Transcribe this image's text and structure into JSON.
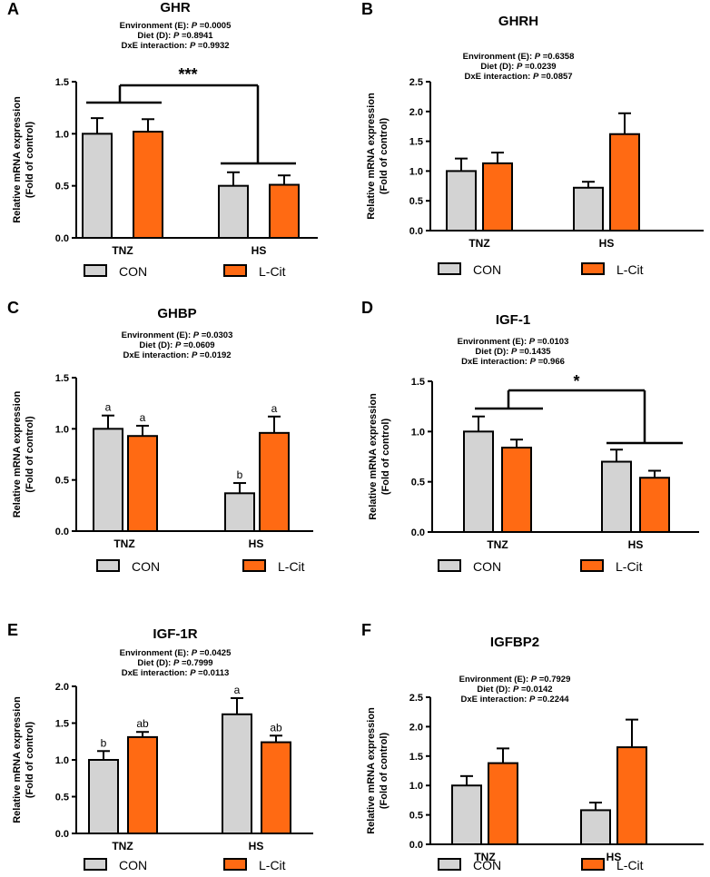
{
  "colors": {
    "con": "#d3d3d3",
    "lcit": "#ff6a13",
    "ink": "#000000"
  },
  "chart_data": [
    {
      "panel": "A",
      "type": "bar",
      "title": "GHR",
      "stats": [
        {
          "label": "Environment (E): ",
          "p": "P",
          "value": " =0.0005"
        },
        {
          "label": "Diet (D): ",
          "p": "P",
          "value": " =0.8941"
        },
        {
          "label": "DxE interaction: ",
          "p": "P",
          "value": " =0.9932"
        }
      ],
      "ylabel": [
        "Relative mRNA expression",
        "(Fold of control)"
      ],
      "ylim": [
        0,
        1.5
      ],
      "yticks": [
        "0.0",
        "0.5",
        "1.0",
        "1.5"
      ],
      "categories": [
        "TNZ",
        "HS"
      ],
      "series": [
        {
          "name": "CON",
          "values": [
            1.0,
            0.5
          ],
          "errors": [
            0.15,
            0.13
          ]
        },
        {
          "name": "L-Cit",
          "values": [
            1.02,
            0.51
          ],
          "errors": [
            0.12,
            0.09
          ]
        }
      ],
      "letters": null,
      "significance": "***",
      "legend": [
        "CON",
        "L-Cit"
      ]
    },
    {
      "panel": "B",
      "type": "bar",
      "title": "GHRH",
      "stats": [
        {
          "label": "Environment (E): ",
          "p": "P",
          "value": " =0.6358"
        },
        {
          "label": "Diet (D): ",
          "p": "P",
          "value": " =0.0239"
        },
        {
          "label": "DxE interaction: ",
          "p": "P",
          "value": " =0.0857"
        }
      ],
      "ylabel": [
        "Relative mRNA expression",
        "(Fold of control)"
      ],
      "ylim": [
        0,
        2.5
      ],
      "yticks": [
        "0.0",
        "0.5",
        "1.0",
        "1.5",
        "2.0",
        "2.5"
      ],
      "categories": [
        "TNZ",
        "HS"
      ],
      "series": [
        {
          "name": "CON",
          "values": [
            1.0,
            0.72
          ],
          "errors": [
            0.21,
            0.1
          ]
        },
        {
          "name": "L-Cit",
          "values": [
            1.13,
            1.62
          ],
          "errors": [
            0.18,
            0.35
          ]
        }
      ],
      "letters": null,
      "significance": null,
      "legend": [
        "CON",
        "L-Cit"
      ]
    },
    {
      "panel": "C",
      "type": "bar",
      "title": "GHBP",
      "stats": [
        {
          "label": "Environment (E): ",
          "p": "P",
          "value": " =0.0303"
        },
        {
          "label": "Diet (D): ",
          "p": "P",
          "value": " =0.0609"
        },
        {
          "label": "DxE interaction: ",
          "p": "P",
          "value": " =0.0192"
        }
      ],
      "ylabel": [
        "Relative mRNA expression",
        "(Fold of control)"
      ],
      "ylim": [
        0,
        1.5
      ],
      "yticks": [
        "0.0",
        "0.5",
        "1.0",
        "1.5"
      ],
      "categories": [
        "TNZ",
        "HS"
      ],
      "series": [
        {
          "name": "CON",
          "values": [
            1.0,
            0.37
          ],
          "errors": [
            0.13,
            0.1
          ]
        },
        {
          "name": "L-Cit",
          "values": [
            0.93,
            0.96
          ],
          "errors": [
            0.1,
            0.16
          ]
        }
      ],
      "letters": [
        [
          "a",
          "b"
        ],
        [
          "a",
          "a"
        ]
      ],
      "significance": null,
      "legend": [
        "CON",
        "L-Cit"
      ]
    },
    {
      "panel": "D",
      "type": "bar",
      "title": "IGF-1",
      "stats": [
        {
          "label": "Environment (E): ",
          "p": "P",
          "value": " =0.0103"
        },
        {
          "label": "Diet (D): ",
          "p": "P",
          "value": " =0.1435"
        },
        {
          "label": "DxE interaction: ",
          "p": "P",
          "value": " =0.966"
        }
      ],
      "ylabel": [
        "Relative mRNA expression",
        "(Fold of control)"
      ],
      "ylim": [
        0,
        1.5
      ],
      "yticks": [
        "0.0",
        "0.5",
        "1.0",
        "1.5"
      ],
      "categories": [
        "TNZ",
        "HS"
      ],
      "series": [
        {
          "name": "CON",
          "values": [
            1.0,
            0.7
          ],
          "errors": [
            0.15,
            0.12
          ]
        },
        {
          "name": "L-Cit",
          "values": [
            0.84,
            0.54
          ],
          "errors": [
            0.08,
            0.07
          ]
        }
      ],
      "letters": null,
      "significance": "*",
      "legend": [
        "CON",
        "L-Cit"
      ]
    },
    {
      "panel": "E",
      "type": "bar",
      "title": "IGF-1R",
      "stats": [
        {
          "label": "Environment (E): ",
          "p": "P",
          "value": " =0.0425"
        },
        {
          "label": "Diet (D): ",
          "p": "P",
          "value": " =0.7999"
        },
        {
          "label": "DxE interaction: ",
          "p": "P",
          "value": " =0.0113"
        }
      ],
      "ylabel": [
        "Relative mRNA expression",
        "(Fold of control)"
      ],
      "ylim": [
        0,
        2.0
      ],
      "yticks": [
        "0.0",
        "0.5",
        "1.0",
        "1.5",
        "2.0"
      ],
      "categories": [
        "TNZ",
        "HS"
      ],
      "series": [
        {
          "name": "CON",
          "values": [
            1.0,
            1.62
          ],
          "errors": [
            0.12,
            0.22
          ]
        },
        {
          "name": "L-Cit",
          "values": [
            1.31,
            1.24
          ],
          "errors": [
            0.07,
            0.09
          ]
        }
      ],
      "letters": [
        [
          "b",
          "a"
        ],
        [
          "ab",
          "ab"
        ]
      ],
      "significance": null,
      "legend": [
        "CON",
        "L-Cit"
      ]
    },
    {
      "panel": "F",
      "type": "bar",
      "title": "IGFBP2",
      "stats": [
        {
          "label": "Environment (E): ",
          "p": "P",
          "value": " =0.7929"
        },
        {
          "label": "Diet (D): ",
          "p": "P",
          "value": " =0.0142"
        },
        {
          "label": "DxE interaction: ",
          "p": "P",
          "value": " =0.2244"
        }
      ],
      "ylabel": [
        "Relative mRNA expression",
        "(Fold of control)"
      ],
      "ylim": [
        0,
        2.5
      ],
      "yticks": [
        "0.0",
        "0.5",
        "1.0",
        "1.5",
        "2.0",
        "2.5"
      ],
      "categories": [
        "TNZ",
        "HS"
      ],
      "series": [
        {
          "name": "CON",
          "values": [
            1.0,
            0.58
          ],
          "errors": [
            0.16,
            0.13
          ]
        },
        {
          "name": "L-Cit",
          "values": [
            1.38,
            1.65
          ],
          "errors": [
            0.25,
            0.47
          ]
        }
      ],
      "letters": null,
      "significance": null,
      "legend": [
        "CON",
        "L-Cit"
      ]
    }
  ]
}
